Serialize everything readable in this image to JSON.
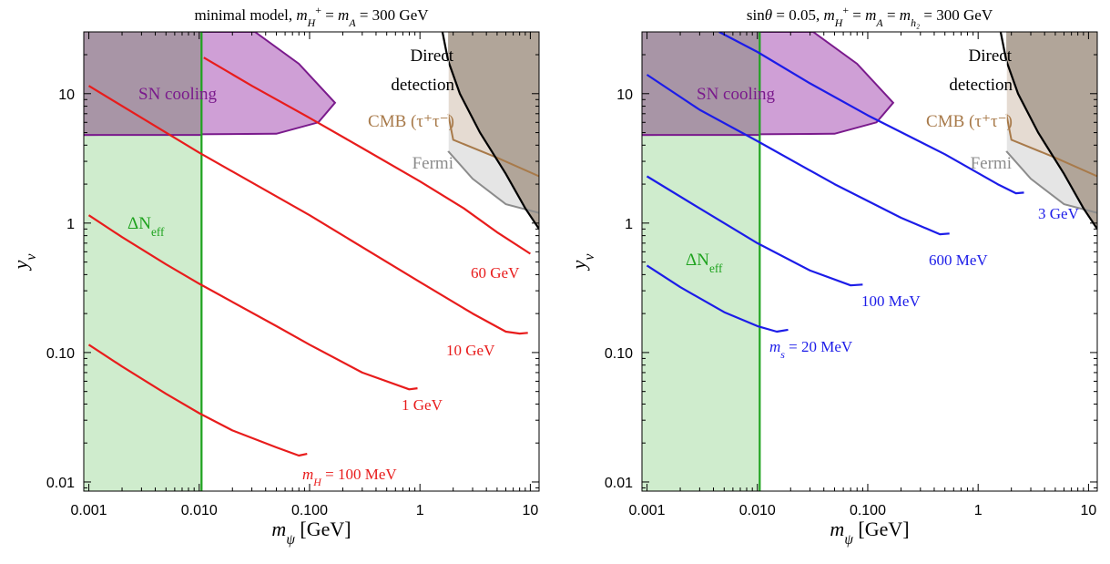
{
  "colors": {
    "sn_fill": "#cf9fd6",
    "sn_edge": "#7a1a8c",
    "sn_text": "#7a1a8c",
    "neff_fill": "#cfeccd",
    "neff_line": "#1fa31f",
    "neff_text": "#1fa31f",
    "overlap_fill": "#a895a6",
    "dd_fill": "#b1a599",
    "dd_edge": "#000000",
    "cmb_fill": "#e5dbd2",
    "cmb_line": "#a87a4a",
    "cmb_text": "#a87a4a",
    "fermi_fill": "#e5e5e5",
    "fermi_line": "#8c8c8c",
    "fermi_text": "#8c8c8c",
    "left_lines": "#e81c1c",
    "right_lines": "#1c1ce8"
  },
  "chart_data": [
    {
      "type": "line",
      "title": "minimal model, m_{H^+} = m_A = 300 GeV",
      "xlabel": "m_ψ [GeV]",
      "ylabel": "y_ν",
      "xscale": "log",
      "yscale": "log",
      "xlim": [
        0.0009,
        12
      ],
      "ylim": [
        0.0085,
        30
      ],
      "xticks": [
        "0.001",
        "0.010",
        "0.100",
        "1",
        "10"
      ],
      "yticks": [
        "0.01",
        "0.10",
        "1",
        "10"
      ],
      "regions": {
        "sn_cooling": {
          "label": "SN cooling",
          "polygon": [
            [
              0.0009,
              4.8
            ],
            [
              0.0009,
              30
            ],
            [
              0.032,
              30
            ],
            [
              0.08,
              17
            ],
            [
              0.17,
              8.5
            ],
            [
              0.12,
              6.0
            ],
            [
              0.05,
              4.9
            ],
            [
              0.0009,
              4.8
            ]
          ]
        },
        "delta_neff": {
          "label": "ΔN_eff",
          "x_max": 0.0105
        },
        "direct_detection": {
          "label_lines": [
            "Direct",
            "detection"
          ],
          "polygon": [
            [
              1.8,
              30
            ],
            [
              1.8,
              18
            ],
            [
              2.3,
              10
            ],
            [
              3.5,
              5
            ],
            [
              6,
              2.4
            ],
            [
              9,
              1.3
            ],
            [
              12,
              0.9
            ],
            [
              12,
              30
            ]
          ]
        },
        "cmb": {
          "label": "CMB (τ⁺τ⁻)",
          "polygon": [
            [
              1.8,
              18
            ],
            [
              2.3,
              10
            ],
            [
              3.5,
              5
            ],
            [
              6,
              2.4
            ],
            [
              9,
              1.3
            ],
            [
              12,
              0.9
            ],
            [
              12,
              2.3
            ],
            [
              5,
              3.2
            ],
            [
              2,
              4.4
            ],
            [
              1.8,
              7
            ]
          ]
        },
        "fermi": {
          "label": "Fermi",
          "polygon": [
            [
              1.8,
              7
            ],
            [
              2,
              4.4
            ],
            [
              5,
              3.2
            ],
            [
              12,
              2.3
            ],
            [
              12,
              1.2
            ],
            [
              6,
              1.4
            ],
            [
              3,
              2.2
            ],
            [
              1.8,
              3.6
            ]
          ]
        }
      },
      "series": [
        {
          "label": "m_H = 100 MeV",
          "x": [
            0.001,
            0.002,
            0.005,
            0.01,
            0.02,
            0.05,
            0.08,
            0.095
          ],
          "y": [
            0.115,
            0.078,
            0.048,
            0.034,
            0.025,
            0.0185,
            0.016,
            0.0165
          ]
        },
        {
          "label": "1 GeV",
          "x": [
            0.001,
            0.002,
            0.005,
            0.01,
            0.05,
            0.1,
            0.3,
            0.8,
            0.95
          ],
          "y": [
            1.15,
            0.78,
            0.48,
            0.34,
            0.16,
            0.115,
            0.07,
            0.052,
            0.053
          ]
        },
        {
          "label": "10 GeV",
          "x": [
            0.001,
            0.01,
            0.1,
            1,
            3,
            6,
            8,
            9.5
          ],
          "y": [
            11.5,
            3.5,
            1.15,
            0.35,
            0.2,
            0.145,
            0.14,
            0.142
          ]
        },
        {
          "label": "60 GeV",
          "x": [
            0.011,
            0.03,
            0.1,
            0.3,
            1,
            2.5,
            5,
            10
          ],
          "y": [
            19,
            11.5,
            6.5,
            3.8,
            2.1,
            1.3,
            0.85,
            0.58
          ]
        }
      ],
      "line_labels": [
        "m_H = 100 MeV",
        "1 GeV",
        "10 GeV",
        "60 GeV"
      ]
    },
    {
      "type": "line",
      "title": "sinθ = 0.05, m_{H^+} = m_A = m_{h_2} = 300 GeV",
      "xlabel": "m_ψ [GeV]",
      "ylabel": "y_ν",
      "xscale": "log",
      "yscale": "log",
      "xlim": [
        0.0009,
        12
      ],
      "ylim": [
        0.0085,
        30
      ],
      "xticks": [
        "0.001",
        "0.010",
        "0.100",
        "1",
        "10"
      ],
      "yticks": [
        "0.01",
        "0.10",
        "1",
        "10"
      ],
      "regions": {
        "sn_cooling": {
          "label": "SN cooling",
          "polygon": [
            [
              0.0009,
              4.8
            ],
            [
              0.0009,
              30
            ],
            [
              0.032,
              30
            ],
            [
              0.08,
              17
            ],
            [
              0.17,
              8.5
            ],
            [
              0.12,
              6.0
            ],
            [
              0.05,
              4.9
            ],
            [
              0.0009,
              4.8
            ]
          ]
        },
        "delta_neff": {
          "label": "ΔN_eff",
          "x_max": 0.0105
        },
        "direct_detection": {
          "label_lines": [
            "Direct",
            "detection"
          ],
          "polygon": [
            [
              1.8,
              30
            ],
            [
              1.8,
              18
            ],
            [
              2.3,
              10
            ],
            [
              3.5,
              5
            ],
            [
              6,
              2.4
            ],
            [
              9,
              1.3
            ],
            [
              12,
              0.9
            ],
            [
              12,
              30
            ]
          ]
        },
        "cmb": {
          "label": "CMB (τ⁺τ⁻)",
          "polygon": [
            [
              1.8,
              18
            ],
            [
              2.3,
              10
            ],
            [
              3.5,
              5
            ],
            [
              6,
              2.4
            ],
            [
              9,
              1.3
            ],
            [
              12,
              0.9
            ],
            [
              12,
              2.3
            ],
            [
              5,
              3.2
            ],
            [
              2,
              4.4
            ],
            [
              1.8,
              7
            ]
          ]
        },
        "fermi": {
          "label": "Fermi",
          "polygon": [
            [
              1.8,
              7
            ],
            [
              2,
              4.4
            ],
            [
              5,
              3.2
            ],
            [
              12,
              2.3
            ],
            [
              12,
              1.2
            ],
            [
              6,
              1.4
            ],
            [
              3,
              2.2
            ],
            [
              1.8,
              3.6
            ]
          ]
        }
      },
      "series": [
        {
          "label": "m_s = 20 MeV",
          "x": [
            0.001,
            0.002,
            0.005,
            0.01,
            0.015,
            0.019
          ],
          "y": [
            0.47,
            0.32,
            0.205,
            0.16,
            0.145,
            0.15
          ]
        },
        {
          "label": "100 MeV",
          "x": [
            0.001,
            0.003,
            0.01,
            0.03,
            0.07,
            0.09
          ],
          "y": [
            2.3,
            1.3,
            0.7,
            0.43,
            0.33,
            0.335
          ]
        },
        {
          "label": "600 MeV",
          "x": [
            0.001,
            0.003,
            0.01,
            0.05,
            0.2,
            0.45,
            0.55
          ],
          "y": [
            14,
            7.5,
            4.3,
            2.0,
            1.1,
            0.82,
            0.83
          ]
        },
        {
          "label": "3 GeV",
          "x": [
            0.0045,
            0.01,
            0.03,
            0.1,
            0.5,
            1.5,
            2.2,
            2.6
          ],
          "y": [
            30,
            21,
            12,
            6.8,
            3.4,
            2.0,
            1.7,
            1.72
          ]
        }
      ],
      "line_labels": [
        "m_s = 20 MeV",
        "100 MeV",
        "600 MeV",
        "3 GeV"
      ]
    }
  ]
}
